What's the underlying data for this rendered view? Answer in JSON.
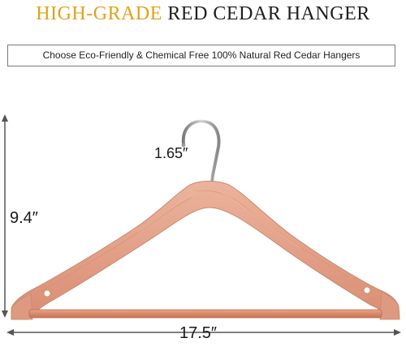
{
  "header": {
    "title_highlight": "HIGH-GRADE",
    "title_rest": "RED CEDAR HANGER"
  },
  "tagline": "Choose Eco-Friendly & Chemical Free 100% Natural Red Cedar Hangers",
  "dimensions": {
    "hook_width": "1.65″",
    "height": "9.4″",
    "width": "17.5″"
  },
  "colors": {
    "highlight": "#e3a11a",
    "text": "#1f1f1f",
    "wood": "#e5a48b",
    "wood_dark": "#cf8466",
    "chrome": "#a8a8a8"
  }
}
